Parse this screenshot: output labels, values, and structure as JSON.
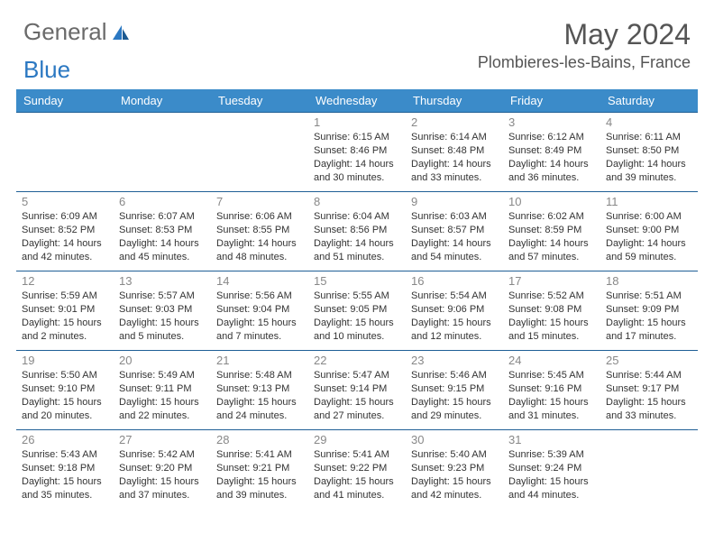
{
  "logo": {
    "part1": "General",
    "part2": "Blue"
  },
  "title": "May 2024",
  "location": "Plombieres-les-Bains, France",
  "colors": {
    "header_bg": "#3b8bc9",
    "header_text": "#ffffff",
    "row_border": "#1f5f96",
    "daynum": "#888888",
    "body_text": "#333333",
    "title_text": "#555555",
    "logo_gray": "#6a6a6a",
    "logo_blue": "#2b78c2",
    "background": "#ffffff"
  },
  "fonts": {
    "title_pt": 32,
    "location_pt": 18,
    "header_pt": 13,
    "daynum_pt": 13,
    "info_pt": 11
  },
  "weekdays": [
    "Sunday",
    "Monday",
    "Tuesday",
    "Wednesday",
    "Thursday",
    "Friday",
    "Saturday"
  ],
  "weeks": [
    [
      {
        "day": "",
        "sunrise": "",
        "sunset": "",
        "daylight": ""
      },
      {
        "day": "",
        "sunrise": "",
        "sunset": "",
        "daylight": ""
      },
      {
        "day": "",
        "sunrise": "",
        "sunset": "",
        "daylight": ""
      },
      {
        "day": "1",
        "sunrise": "Sunrise: 6:15 AM",
        "sunset": "Sunset: 8:46 PM",
        "daylight": "Daylight: 14 hours and 30 minutes."
      },
      {
        "day": "2",
        "sunrise": "Sunrise: 6:14 AM",
        "sunset": "Sunset: 8:48 PM",
        "daylight": "Daylight: 14 hours and 33 minutes."
      },
      {
        "day": "3",
        "sunrise": "Sunrise: 6:12 AM",
        "sunset": "Sunset: 8:49 PM",
        "daylight": "Daylight: 14 hours and 36 minutes."
      },
      {
        "day": "4",
        "sunrise": "Sunrise: 6:11 AM",
        "sunset": "Sunset: 8:50 PM",
        "daylight": "Daylight: 14 hours and 39 minutes."
      }
    ],
    [
      {
        "day": "5",
        "sunrise": "Sunrise: 6:09 AM",
        "sunset": "Sunset: 8:52 PM",
        "daylight": "Daylight: 14 hours and 42 minutes."
      },
      {
        "day": "6",
        "sunrise": "Sunrise: 6:07 AM",
        "sunset": "Sunset: 8:53 PM",
        "daylight": "Daylight: 14 hours and 45 minutes."
      },
      {
        "day": "7",
        "sunrise": "Sunrise: 6:06 AM",
        "sunset": "Sunset: 8:55 PM",
        "daylight": "Daylight: 14 hours and 48 minutes."
      },
      {
        "day": "8",
        "sunrise": "Sunrise: 6:04 AM",
        "sunset": "Sunset: 8:56 PM",
        "daylight": "Daylight: 14 hours and 51 minutes."
      },
      {
        "day": "9",
        "sunrise": "Sunrise: 6:03 AM",
        "sunset": "Sunset: 8:57 PM",
        "daylight": "Daylight: 14 hours and 54 minutes."
      },
      {
        "day": "10",
        "sunrise": "Sunrise: 6:02 AM",
        "sunset": "Sunset: 8:59 PM",
        "daylight": "Daylight: 14 hours and 57 minutes."
      },
      {
        "day": "11",
        "sunrise": "Sunrise: 6:00 AM",
        "sunset": "Sunset: 9:00 PM",
        "daylight": "Daylight: 14 hours and 59 minutes."
      }
    ],
    [
      {
        "day": "12",
        "sunrise": "Sunrise: 5:59 AM",
        "sunset": "Sunset: 9:01 PM",
        "daylight": "Daylight: 15 hours and 2 minutes."
      },
      {
        "day": "13",
        "sunrise": "Sunrise: 5:57 AM",
        "sunset": "Sunset: 9:03 PM",
        "daylight": "Daylight: 15 hours and 5 minutes."
      },
      {
        "day": "14",
        "sunrise": "Sunrise: 5:56 AM",
        "sunset": "Sunset: 9:04 PM",
        "daylight": "Daylight: 15 hours and 7 minutes."
      },
      {
        "day": "15",
        "sunrise": "Sunrise: 5:55 AM",
        "sunset": "Sunset: 9:05 PM",
        "daylight": "Daylight: 15 hours and 10 minutes."
      },
      {
        "day": "16",
        "sunrise": "Sunrise: 5:54 AM",
        "sunset": "Sunset: 9:06 PM",
        "daylight": "Daylight: 15 hours and 12 minutes."
      },
      {
        "day": "17",
        "sunrise": "Sunrise: 5:52 AM",
        "sunset": "Sunset: 9:08 PM",
        "daylight": "Daylight: 15 hours and 15 minutes."
      },
      {
        "day": "18",
        "sunrise": "Sunrise: 5:51 AM",
        "sunset": "Sunset: 9:09 PM",
        "daylight": "Daylight: 15 hours and 17 minutes."
      }
    ],
    [
      {
        "day": "19",
        "sunrise": "Sunrise: 5:50 AM",
        "sunset": "Sunset: 9:10 PM",
        "daylight": "Daylight: 15 hours and 20 minutes."
      },
      {
        "day": "20",
        "sunrise": "Sunrise: 5:49 AM",
        "sunset": "Sunset: 9:11 PM",
        "daylight": "Daylight: 15 hours and 22 minutes."
      },
      {
        "day": "21",
        "sunrise": "Sunrise: 5:48 AM",
        "sunset": "Sunset: 9:13 PM",
        "daylight": "Daylight: 15 hours and 24 minutes."
      },
      {
        "day": "22",
        "sunrise": "Sunrise: 5:47 AM",
        "sunset": "Sunset: 9:14 PM",
        "daylight": "Daylight: 15 hours and 27 minutes."
      },
      {
        "day": "23",
        "sunrise": "Sunrise: 5:46 AM",
        "sunset": "Sunset: 9:15 PM",
        "daylight": "Daylight: 15 hours and 29 minutes."
      },
      {
        "day": "24",
        "sunrise": "Sunrise: 5:45 AM",
        "sunset": "Sunset: 9:16 PM",
        "daylight": "Daylight: 15 hours and 31 minutes."
      },
      {
        "day": "25",
        "sunrise": "Sunrise: 5:44 AM",
        "sunset": "Sunset: 9:17 PM",
        "daylight": "Daylight: 15 hours and 33 minutes."
      }
    ],
    [
      {
        "day": "26",
        "sunrise": "Sunrise: 5:43 AM",
        "sunset": "Sunset: 9:18 PM",
        "daylight": "Daylight: 15 hours and 35 minutes."
      },
      {
        "day": "27",
        "sunrise": "Sunrise: 5:42 AM",
        "sunset": "Sunset: 9:20 PM",
        "daylight": "Daylight: 15 hours and 37 minutes."
      },
      {
        "day": "28",
        "sunrise": "Sunrise: 5:41 AM",
        "sunset": "Sunset: 9:21 PM",
        "daylight": "Daylight: 15 hours and 39 minutes."
      },
      {
        "day": "29",
        "sunrise": "Sunrise: 5:41 AM",
        "sunset": "Sunset: 9:22 PM",
        "daylight": "Daylight: 15 hours and 41 minutes."
      },
      {
        "day": "30",
        "sunrise": "Sunrise: 5:40 AM",
        "sunset": "Sunset: 9:23 PM",
        "daylight": "Daylight: 15 hours and 42 minutes."
      },
      {
        "day": "31",
        "sunrise": "Sunrise: 5:39 AM",
        "sunset": "Sunset: 9:24 PM",
        "daylight": "Daylight: 15 hours and 44 minutes."
      },
      {
        "day": "",
        "sunrise": "",
        "sunset": "",
        "daylight": ""
      }
    ]
  ]
}
